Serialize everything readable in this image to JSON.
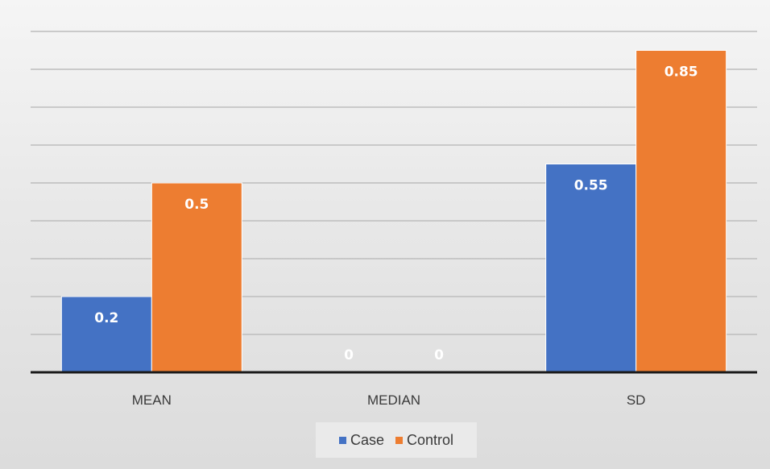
{
  "chart_data": {
    "type": "bar",
    "categories": [
      "MEAN",
      "MEDIAN",
      "SD"
    ],
    "series": [
      {
        "name": "Case",
        "color": "#4472c4",
        "values": [
          0.2,
          0,
          0.55
        ],
        "labels": [
          "0.2",
          "0",
          "0.55"
        ]
      },
      {
        "name": "Control",
        "color": "#ed7d31",
        "values": [
          0.5,
          0,
          0.85
        ],
        "labels": [
          "0.5",
          "0",
          "0.85"
        ]
      }
    ],
    "ylim": [
      0,
      0.9
    ],
    "grid": true,
    "legend": "bottom",
    "data_labels": "inside-top"
  }
}
